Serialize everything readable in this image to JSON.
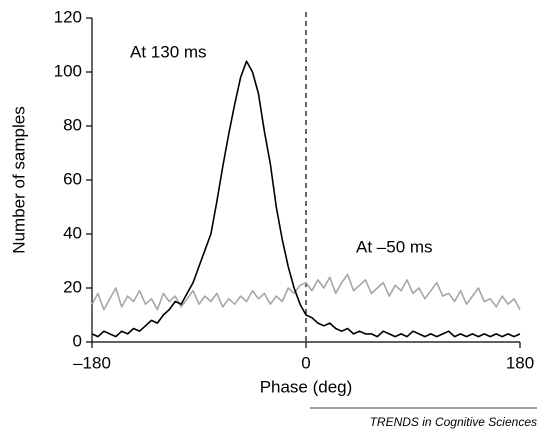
{
  "chart_data": {
    "type": "line",
    "xlabel": "Phase (deg)",
    "ylabel": "Number of samples",
    "footer": "TRENDS in Cognitive Sciences",
    "x": [
      -180,
      -175,
      -170,
      -165,
      -160,
      -155,
      -150,
      -145,
      -140,
      -135,
      -130,
      -125,
      -120,
      -115,
      -110,
      -105,
      -100,
      -95,
      -90,
      -85,
      -80,
      -75,
      -70,
      -65,
      -60,
      -55,
      -50,
      -45,
      -40,
      -35,
      -30,
      -25,
      -20,
      -15,
      -10,
      -5,
      0,
      5,
      10,
      15,
      20,
      25,
      30,
      35,
      40,
      45,
      50,
      55,
      60,
      65,
      70,
      75,
      80,
      85,
      90,
      95,
      100,
      105,
      110,
      115,
      120,
      125,
      130,
      135,
      140,
      145,
      150,
      155,
      160,
      165,
      170,
      175,
      180
    ],
    "series": [
      {
        "name": "At 130 ms",
        "color": "#000000",
        "values": [
          3,
          2,
          4,
          3,
          2,
          4,
          3,
          5,
          4,
          6,
          8,
          7,
          10,
          12,
          15,
          14,
          18,
          22,
          28,
          34,
          40,
          52,
          65,
          77,
          88,
          98,
          104,
          100,
          92,
          78,
          66,
          50,
          38,
          28,
          20,
          14,
          10,
          9,
          7,
          6,
          7,
          5,
          4,
          5,
          3,
          4,
          3,
          3,
          2,
          4,
          3,
          2,
          3,
          2,
          4,
          3,
          2,
          3,
          2,
          3,
          4,
          2,
          3,
          2,
          3,
          2,
          3,
          2,
          3,
          2,
          3,
          2,
          3
        ]
      },
      {
        "name": "At –50 ms",
        "color": "#a6a6a6",
        "values": [
          14,
          18,
          12,
          16,
          20,
          13,
          17,
          15,
          19,
          14,
          16,
          12,
          18,
          15,
          17,
          13,
          16,
          19,
          14,
          17,
          15,
          18,
          13,
          16,
          14,
          17,
          15,
          19,
          16,
          18,
          14,
          17,
          15,
          20,
          18,
          21,
          22,
          19,
          23,
          20,
          24,
          18,
          22,
          25,
          19,
          21,
          23,
          18,
          20,
          22,
          17,
          21,
          19,
          23,
          18,
          20,
          16,
          19,
          22,
          17,
          18,
          15,
          19,
          14,
          17,
          20,
          15,
          16,
          13,
          17,
          14,
          16,
          12
        ]
      }
    ],
    "xlim": [
      -180,
      180
    ],
    "xticks": [
      {
        "value": -180,
        "label": "–180"
      },
      0,
      180
    ],
    "ylim": [
      0,
      120
    ],
    "yticks": [
      0,
      20,
      40,
      60,
      80,
      100,
      120
    ],
    "reference_line_x": 0,
    "grid": false
  }
}
